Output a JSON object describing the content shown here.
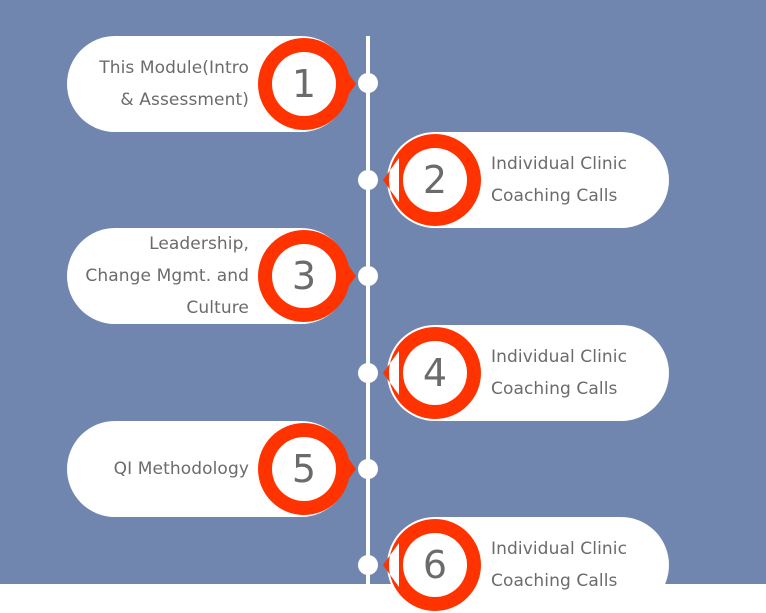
{
  "colors": {
    "background": "#7086ae",
    "accent": "#ff3300",
    "card": "#ffffff",
    "text": "#6b6b6b"
  },
  "steps": [
    {
      "number": "1",
      "label": "This Module(Intro\n& Assessment)",
      "side": "left"
    },
    {
      "number": "2",
      "label": "Individual Clinic\nCoaching Calls",
      "side": "right"
    },
    {
      "number": "3",
      "label": "Leadership,\nChange Mgmt. and\nCulture",
      "side": "left"
    },
    {
      "number": "4",
      "label": "Individual Clinic\nCoaching Calls",
      "side": "right"
    },
    {
      "number": "5",
      "label": "QI Methodology",
      "side": "left"
    },
    {
      "number": "6",
      "label": "Individual Clinic\nCoaching Calls",
      "side": "right"
    }
  ]
}
